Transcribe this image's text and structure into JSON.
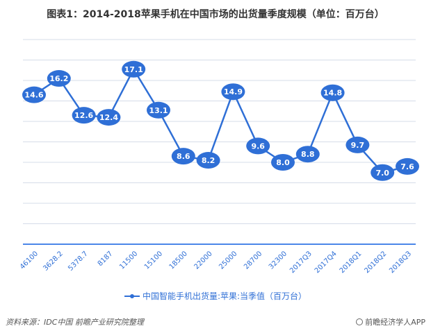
{
  "chart_data": {
    "type": "line",
    "title": "图表1：2014-2018苹果手机在中国市场的出货量季度规模（单位：百万台）",
    "categories": [
      "46100",
      "3628.2",
      "5378.7",
      "8187",
      "11500",
      "15100",
      "18500",
      "22000",
      "25000",
      "28700",
      "32300",
      "2017Q3",
      "2017Q4",
      "2018Q1",
      "2018Q2",
      "2018Q3"
    ],
    "series": [
      {
        "name": "中国智能手机出货量:苹果:当季值（百万台）",
        "values": [
          14.6,
          16.2,
          12.6,
          12.4,
          17.1,
          13.1,
          8.6,
          8.2,
          14.9,
          9.6,
          8.0,
          8.8,
          14.8,
          9.7,
          7.0,
          7.6
        ],
        "labels": [
          "14.6",
          "16.2",
          "12.6",
          "12.4",
          "17.1",
          "13.1",
          "8.6",
          "8.2",
          "14.9",
          "9.6",
          "8.0",
          "8.8",
          "14.8",
          "9.7",
          "7.0",
          "7.6"
        ]
      }
    ],
    "ylim": [
      0,
      20
    ],
    "grid": true,
    "legend": "bottom",
    "color": "#2F6FD6",
    "axis_color": "#4A86E8",
    "grid_color": "#D5DCE8"
  },
  "footer": {
    "source": "资料来源：IDC中国  前瞻产业研究院整理",
    "brand": "前瞻经济学人APP"
  }
}
